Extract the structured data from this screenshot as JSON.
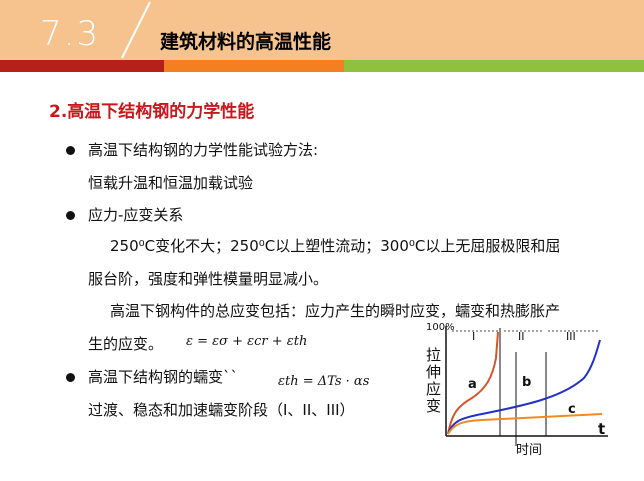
{
  "header": {
    "section_number": "7.3",
    "title": "建筑材料的高温性能",
    "colors": {
      "header_bg": "#f6c28e",
      "band_red": "#b5211a",
      "band_orange": "#f37f21",
      "band_green": "#8fc13e"
    }
  },
  "content": {
    "subtitle": "2.高温下结构钢的力学性能",
    "bullet1": {
      "line1": "高温下结构钢的力学性能试验方法:",
      "line2": "恒载升温和恒温加载试验"
    },
    "bullet2": {
      "heading": "应力-应变关系",
      "p1_line1": "250⁰C变化不大；250⁰C以上塑性流动；300⁰C以上无屈服极限和屈",
      "p1_line2": "服台阶，强度和弹性模量明显减小。",
      "p2_line1": "高温下钢构件的总应变包括：应力产生的瞬时应变，蠕变和热膨胀产",
      "p2_line2": "生的应变。"
    },
    "formula_total": "ε = εσ + εcr + εth",
    "bullet3": {
      "heading": "高温下结构钢的蠕变``",
      "line2": "过渡、稳态和加速蠕变阶段（I、II、III）"
    },
    "formula_creep": "εth = ΔTs · αs"
  },
  "chart_data": {
    "type": "line",
    "title": "",
    "y_axis_label": "拉伸应变",
    "y_top_label": "100%",
    "x_axis_label": "时间",
    "x_axis_end": "t",
    "stages": [
      "I",
      "II",
      "III"
    ],
    "series": [
      {
        "name": "a",
        "color": "#d9542a"
      },
      {
        "name": "b",
        "color": "#2231c9"
      },
      {
        "name": "c",
        "color": "#f08a24"
      }
    ]
  }
}
